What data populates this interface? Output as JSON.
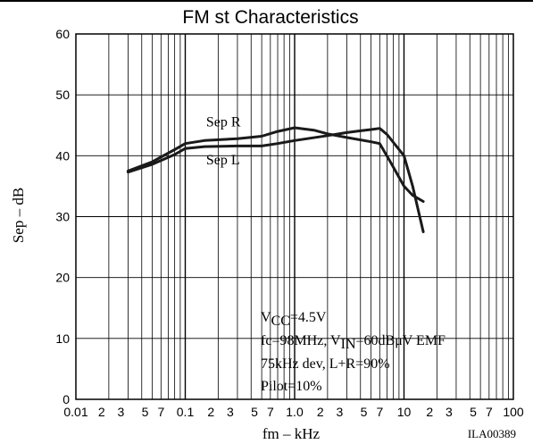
{
  "chart_data": {
    "type": "line",
    "title": "FM st Characteristics",
    "xlabel": "fm  –  kHz",
    "ylabel": "Sep  –  dB",
    "x_scale": "log",
    "xlim": [
      0.01,
      100
    ],
    "ylim": [
      0,
      60
    ],
    "grid": true,
    "y_ticks": [
      "0",
      "10",
      "20",
      "30",
      "40",
      "50",
      "60"
    ],
    "x_tick_labels": [
      {
        "value": 0.01,
        "label": "0.01",
        "major": true
      },
      {
        "value": 0.02,
        "label": "2"
      },
      {
        "value": 0.03,
        "label": "3"
      },
      {
        "value": 0.05,
        "label": "5"
      },
      {
        "value": 0.07,
        "label": "7"
      },
      {
        "value": 0.1,
        "label": "0.1",
        "major": true
      },
      {
        "value": 0.2,
        "label": "2"
      },
      {
        "value": 0.3,
        "label": "3"
      },
      {
        "value": 0.5,
        "label": "5"
      },
      {
        "value": 0.7,
        "label": "7"
      },
      {
        "value": 1,
        "label": "1.0",
        "major": true
      },
      {
        "value": 2,
        "label": "2"
      },
      {
        "value": 3,
        "label": "3"
      },
      {
        "value": 5,
        "label": "5"
      },
      {
        "value": 7,
        "label": "7"
      },
      {
        "value": 10,
        "label": "10",
        "major": true
      },
      {
        "value": 20,
        "label": "2"
      },
      {
        "value": 30,
        "label": "3"
      },
      {
        "value": 50,
        "label": "5"
      },
      {
        "value": 70,
        "label": "7"
      },
      {
        "value": 100,
        "label": "100",
        "major": true
      }
    ],
    "series": [
      {
        "name": "Sep R",
        "x": [
          0.03,
          0.05,
          0.08,
          0.1,
          0.15,
          0.3,
          0.5,
          0.7,
          1.0,
          1.5,
          2.0,
          3.0,
          5.0,
          6.0,
          7.5,
          10.0,
          12.0,
          15.0
        ],
        "y": [
          37.5,
          39.0,
          41.0,
          42.0,
          42.5,
          42.8,
          43.2,
          44.0,
          44.6,
          44.2,
          43.6,
          43.0,
          42.3,
          42.0,
          39.0,
          35.0,
          33.5,
          32.5
        ]
      },
      {
        "name": "Sep L",
        "x": [
          0.03,
          0.05,
          0.08,
          0.1,
          0.15,
          0.3,
          0.5,
          0.7,
          1.0,
          2.0,
          3.0,
          4.0,
          5.0,
          6.0,
          7.0,
          10.0,
          12.0,
          15.0
        ],
        "y": [
          37.3,
          38.6,
          40.2,
          41.2,
          41.5,
          41.6,
          41.6,
          42.0,
          42.5,
          43.3,
          43.8,
          44.1,
          44.3,
          44.5,
          43.5,
          40.0,
          35.0,
          27.5
        ]
      }
    ],
    "series_labels": [
      "Sep R",
      "Sep L"
    ],
    "annotation_lines": [
      {
        "main": "V",
        "sub": "CC",
        "rest": "=4.5V"
      },
      {
        "main": "fc=98MHz, V",
        "sub": "IN",
        "rest": "=60dBμV EMF"
      },
      {
        "main": "75kHz dev, L+R=90%",
        "sub": "",
        "rest": ""
      },
      {
        "main": "Pilot=10%",
        "sub": "",
        "rest": ""
      }
    ],
    "figure_code": "ILA00389",
    "line_color": "#1a1a1a",
    "grid_color": "#000000"
  }
}
